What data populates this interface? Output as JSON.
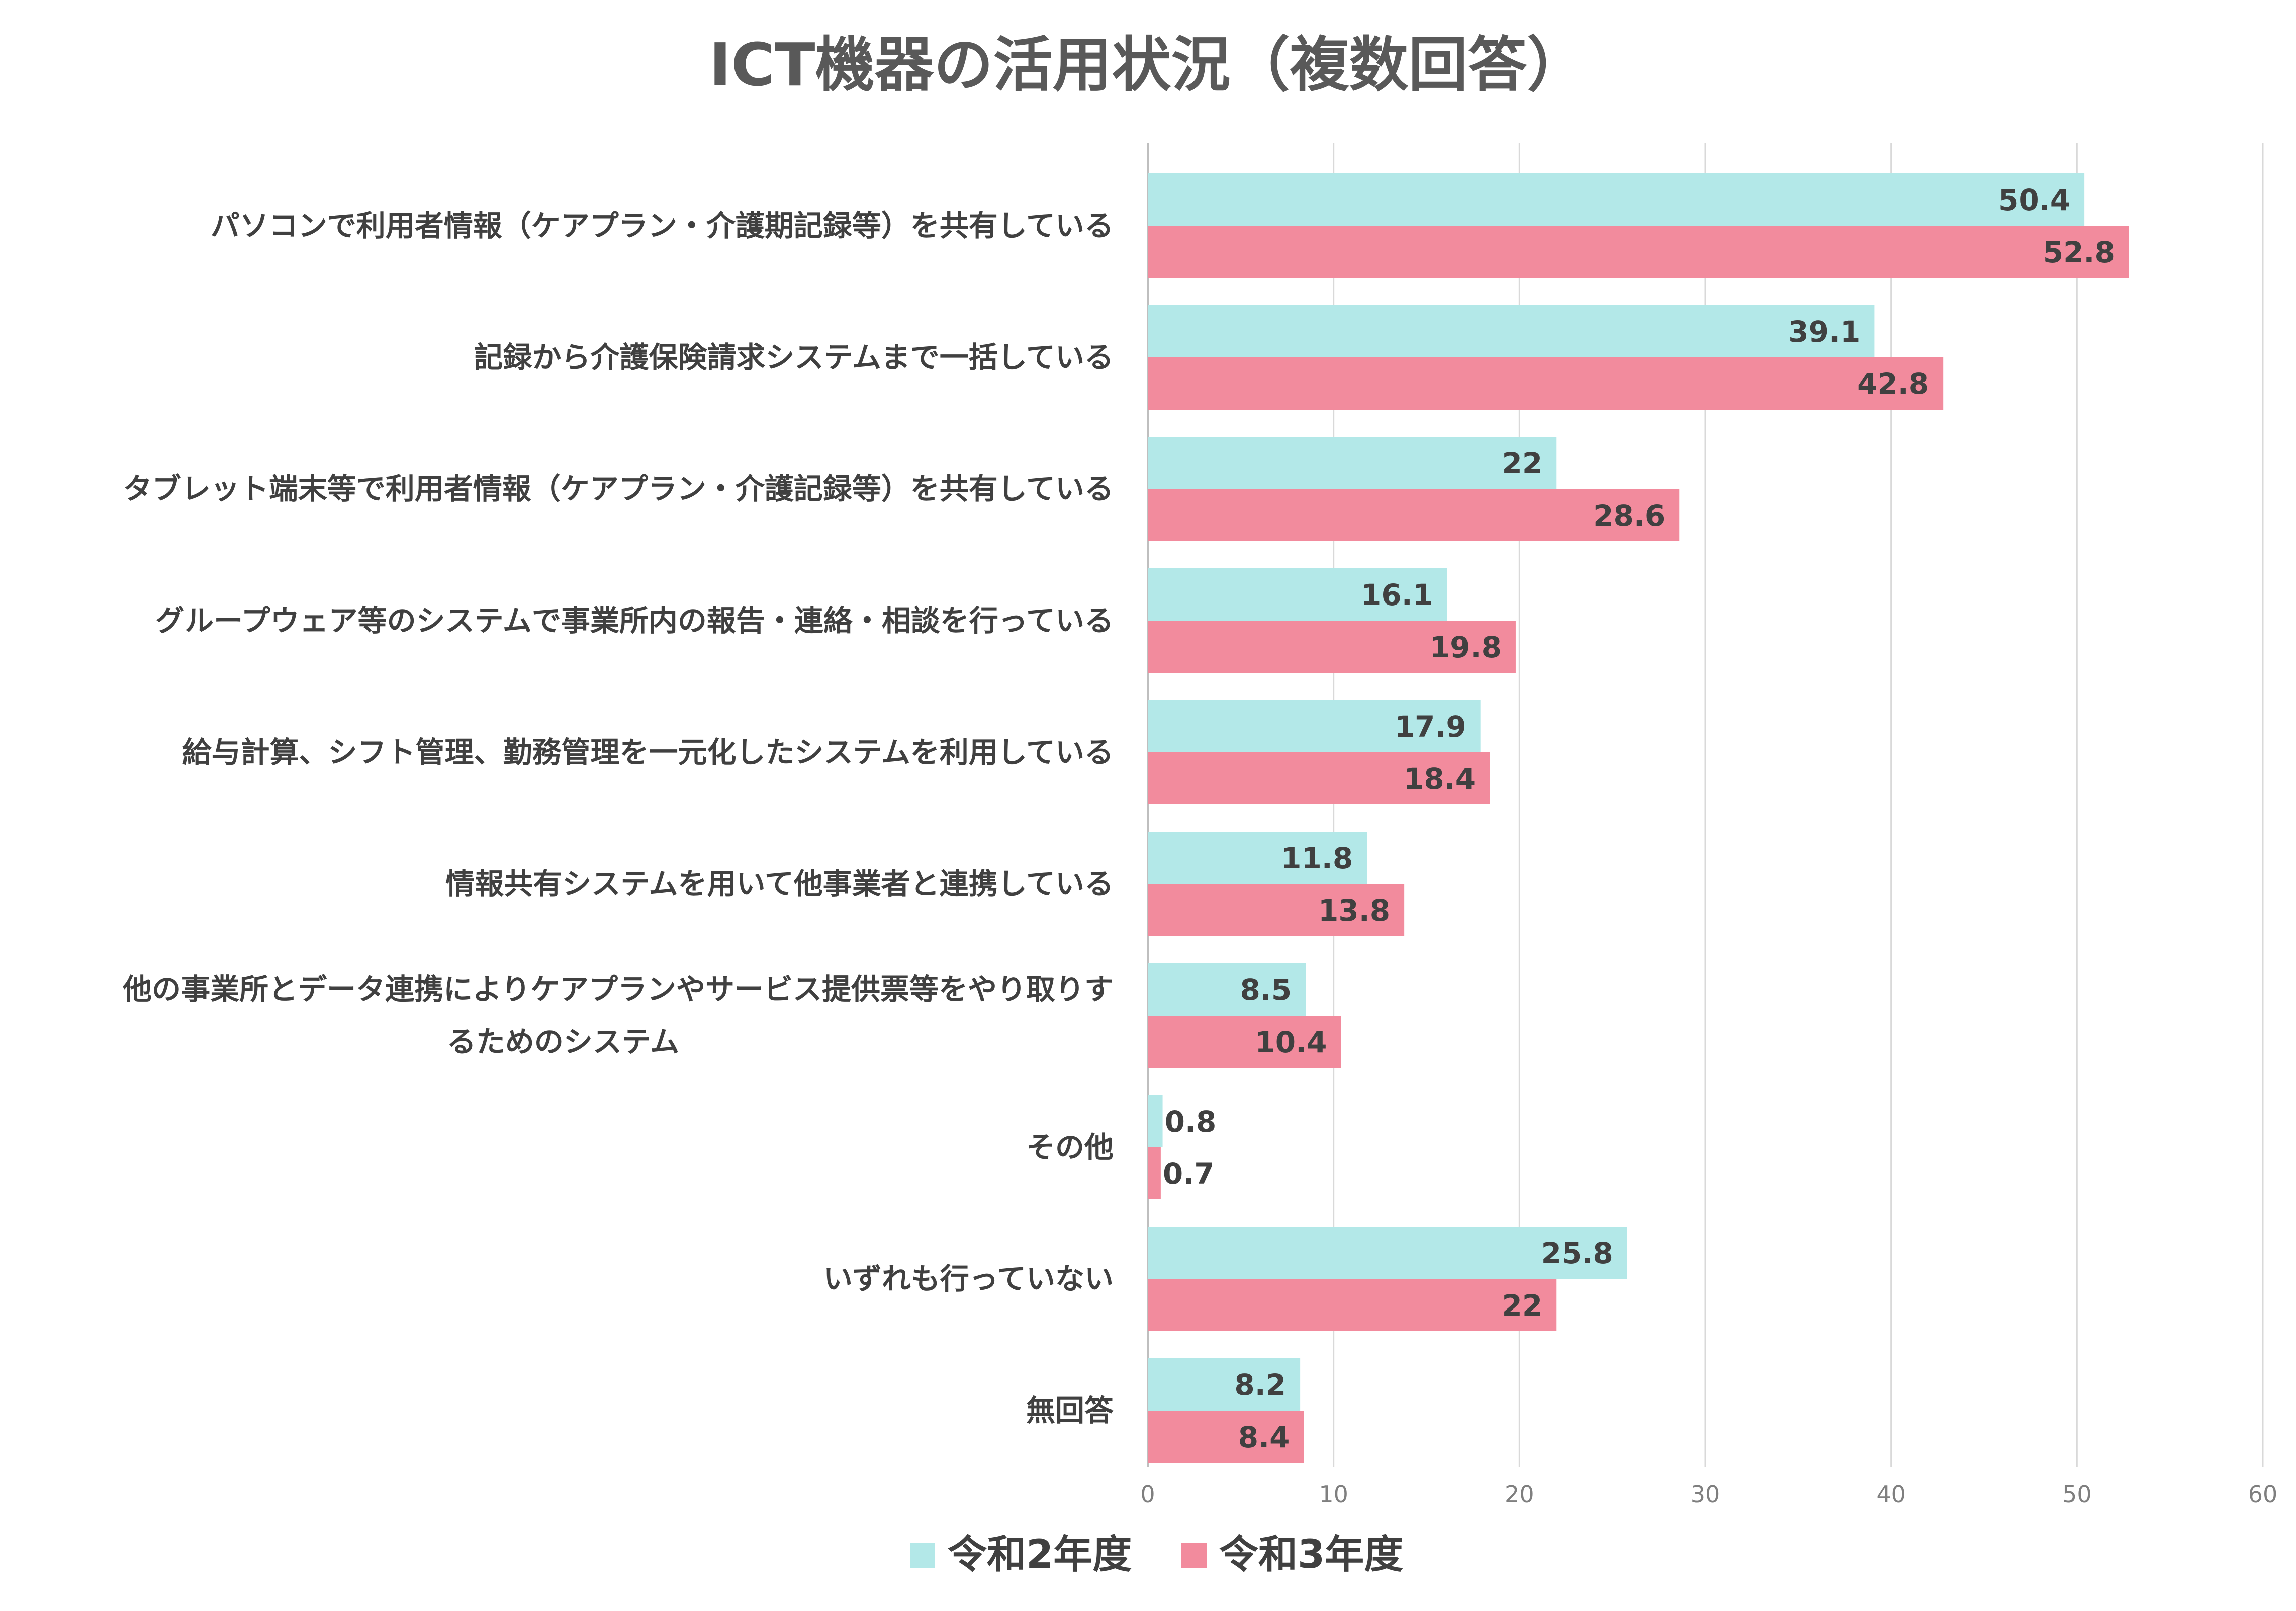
{
  "chart_data": {
    "type": "bar",
    "orientation": "horizontal",
    "title": "ICT機器の活用状況（複数回答）",
    "categories": [
      [
        "パソコンで利用者情報（ケアプラン・介護期記録等）を共有している"
      ],
      [
        "記録から介護保険請求システムまで一括している"
      ],
      [
        "タブレット端末等で利用者情報（ケアプラン・介護記録等）を共有している"
      ],
      [
        "グループウェア等のシステムで事業所内の報告・連絡・相談を行っている"
      ],
      [
        "給与計算、シフト管理、勤務管理を一元化したシステムを利用している"
      ],
      [
        "情報共有システムを用いて他事業者と連携している"
      ],
      [
        "他の事業所とデータ連携によりケアプランやサービス提供票等をやり取りす",
        "るためのシステム"
      ],
      [
        "その他"
      ],
      [
        "いずれも行っていない"
      ],
      [
        "無回答"
      ]
    ],
    "series": [
      {
        "name": "令和2年度",
        "color": "#b3e8e8",
        "values": [
          50.4,
          39.1,
          22,
          16.1,
          17.9,
          11.8,
          8.5,
          0.8,
          25.8,
          8.2
        ],
        "labels": [
          "50.4",
          "39.1",
          "22",
          "16.1",
          "17.9",
          "11.8",
          "8.5",
          "0.8",
          "25.8",
          "8.2"
        ]
      },
      {
        "name": "令和3年度",
        "color": "#f28b9d",
        "values": [
          52.8,
          42.8,
          28.6,
          19.8,
          18.4,
          13.8,
          10.4,
          0.7,
          22,
          8.4
        ],
        "labels": [
          "52.8",
          "42.8",
          "28.6",
          "19.8",
          "18.4",
          "13.8",
          "10.4",
          "0.7",
          "22",
          "8.4"
        ]
      }
    ],
    "xlim": [
      0,
      60
    ],
    "xticks": [
      "0",
      "10",
      "20",
      "30",
      "40",
      "50",
      "60"
    ],
    "grid": true,
    "legend": "bottom",
    "gridColor": "#d9d9d9"
  }
}
